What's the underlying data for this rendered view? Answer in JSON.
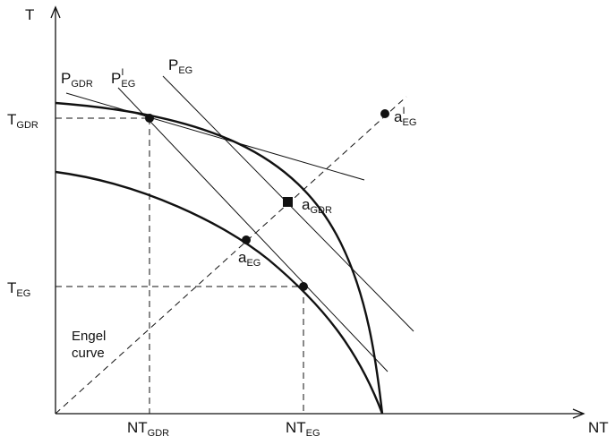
{
  "axes": {
    "y_label": "T",
    "x_label": "NT"
  },
  "ticks": {
    "t_gdr": {
      "main": "T",
      "sub": "GDR"
    },
    "t_eg": {
      "main": "T",
      "sub": "EG"
    },
    "nt_gdr": {
      "main": "NT",
      "sub": "GDR"
    },
    "nt_eg": {
      "main": "NT",
      "sub": "EG"
    }
  },
  "price_lines": {
    "p_gdr": {
      "main": "P",
      "sub": "GDR"
    },
    "p_prime_eg": {
      "main": "P",
      "sup": "I",
      "sub": "EG"
    },
    "p_eg": {
      "main": "P",
      "sub": "EG"
    }
  },
  "points": {
    "a_gdr": {
      "main": "a",
      "sub": "GDR"
    },
    "a_eg": {
      "main": "a",
      "sub": "EG"
    },
    "a_prime_eg": {
      "main": "a",
      "sup": "I",
      "sub": "EG"
    }
  },
  "engel_curve": {
    "line1": "Engel",
    "line2": "curve"
  },
  "colors": {
    "ink": "#111111",
    "background": "#ffffff"
  }
}
